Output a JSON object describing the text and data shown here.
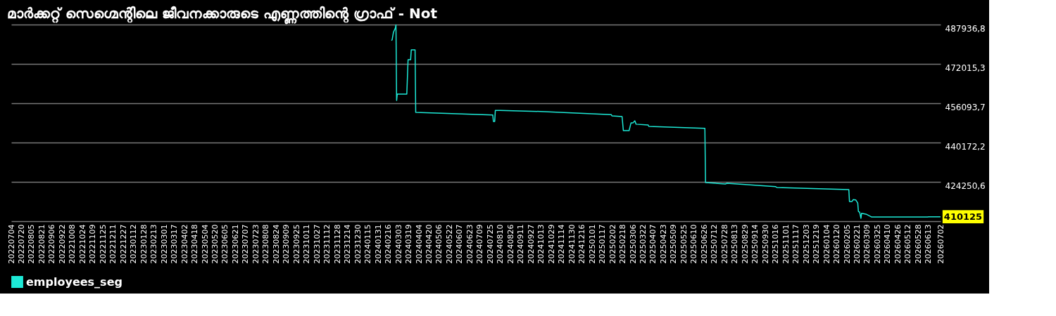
{
  "chart_data": {
    "type": "line",
    "title": "മാർക്കറ്റ് സെഗ്മെന്റിലെ ജീവനക്കാരുടെ എണ്ണത്തിന്റെ ഗ്രാഫ് - Not",
    "series": [
      {
        "name": "employees_seg",
        "color": "#1de9d6",
        "x": [
          "2024-02-21",
          "2024-02-22",
          "2024-02-24",
          "2024-02-27",
          "2024-02-28",
          "2024-02-29",
          "2024-03-01",
          "2024-03-16",
          "2024-03-18",
          "2024-03-22",
          "2024-03-23",
          "2024-03-29",
          "2024-03-30",
          "2024-07-29",
          "2024-07-30",
          "2024-08-01",
          "2024-08-02",
          "2024-08-10",
          "2024-10-18",
          "2025-01-31",
          "2025-02-01",
          "2025-02-17",
          "2025-02-19",
          "2025-02-28",
          "2025-03-03",
          "2025-03-06",
          "2025-03-09",
          "2025-03-11",
          "2025-03-30",
          "2025-03-31",
          "2025-06-27",
          "2025-06-28",
          "2025-07-29",
          "2025-08-01",
          "2025-10-16",
          "2025-10-18",
          "2026-02-08",
          "2026-02-09",
          "2026-02-13",
          "2026-02-15",
          "2026-02-19",
          "2026-02-22",
          "2026-02-23",
          "2026-02-25",
          "2026-02-27",
          "2026-02-28",
          "2026-03-07",
          "2026-03-16",
          "2026-06-12",
          "2026-06-13",
          "2026-07-02"
        ],
        "values": [
          481500,
          481800,
          484800,
          486500,
          487800,
          457200,
          459800,
          459800,
          473700,
          473700,
          477700,
          477700,
          452400,
          451300,
          448700,
          448700,
          453200,
          453200,
          452700,
          451500,
          451000,
          450700,
          445000,
          445000,
          448100,
          448100,
          449000,
          447600,
          447300,
          446700,
          445900,
          424000,
          423400,
          423700,
          422300,
          422000,
          421100,
          416300,
          416300,
          417100,
          416900,
          415700,
          412300,
          412000,
          409500,
          411500,
          411200,
          410000,
          410000,
          410125,
          410125
        ]
      }
    ],
    "ylim": [
      408329.4,
      487936.8
    ],
    "yticks": [
      {
        "value": 408329.4,
        "label": null
      },
      {
        "value": 424250.6,
        "label": "424250,6"
      },
      {
        "value": 440172.2,
        "label": "440172,2"
      },
      {
        "value": 456093.7,
        "label": "456093,7"
      },
      {
        "value": 472015.3,
        "label": "472015,3"
      },
      {
        "value": 487936.8,
        "label": "487936,8"
      }
    ],
    "xlim": [
      "2022-07-04",
      "2026-07-02"
    ],
    "xticks": [
      {
        "value": "2022-07-04",
        "label": "20220704"
      },
      {
        "value": "2022-07-20",
        "label": "20220720"
      },
      {
        "value": "2022-08-05",
        "label": "20220805"
      },
      {
        "value": "2022-08-21",
        "label": "20220821"
      },
      {
        "value": "2022-09-06",
        "label": "20220906"
      },
      {
        "value": "2022-09-22",
        "label": "20220922"
      },
      {
        "value": "2022-10-08",
        "label": "20221008"
      },
      {
        "value": "2022-10-24",
        "label": "20221024"
      },
      {
        "value": "2022-11-09",
        "label": "20221109"
      },
      {
        "value": "2022-11-25",
        "label": "20221125"
      },
      {
        "value": "2022-12-11",
        "label": "20221211"
      },
      {
        "value": "2022-12-27",
        "label": "20221227"
      },
      {
        "value": "2023-01-12",
        "label": "20230112"
      },
      {
        "value": "2023-01-28",
        "label": "20230128"
      },
      {
        "value": "2023-02-13",
        "label": "20230213"
      },
      {
        "value": "2023-03-01",
        "label": "20230301"
      },
      {
        "value": "2023-03-17",
        "label": "20230317"
      },
      {
        "value": "2023-04-02",
        "label": "20230402"
      },
      {
        "value": "2023-04-18",
        "label": "20230418"
      },
      {
        "value": "2023-05-04",
        "label": "20230504"
      },
      {
        "value": "2023-05-20",
        "label": "20230520"
      },
      {
        "value": "2023-06-05",
        "label": "20230605"
      },
      {
        "value": "2023-06-21",
        "label": "20230621"
      },
      {
        "value": "2023-07-07",
        "label": "20230707"
      },
      {
        "value": "2023-07-23",
        "label": "20230723"
      },
      {
        "value": "2023-08-08",
        "label": "20230808"
      },
      {
        "value": "2023-08-24",
        "label": "20230824"
      },
      {
        "value": "2023-09-09",
        "label": "20230909"
      },
      {
        "value": "2023-09-25",
        "label": "20230925"
      },
      {
        "value": "2023-10-11",
        "label": "20231011"
      },
      {
        "value": "2023-10-27",
        "label": "20231027"
      },
      {
        "value": "2023-11-12",
        "label": "20231112"
      },
      {
        "value": "2023-11-28",
        "label": "20231128"
      },
      {
        "value": "2023-12-14",
        "label": "20231214"
      },
      {
        "value": "2023-12-30",
        "label": "20231230"
      },
      {
        "value": "2024-01-15",
        "label": "20240115"
      },
      {
        "value": "2024-01-31",
        "label": "20240131"
      },
      {
        "value": "2024-02-16",
        "label": "20240216"
      },
      {
        "value": "2024-03-03",
        "label": "20240303"
      },
      {
        "value": "2024-03-19",
        "label": "20240319"
      },
      {
        "value": "2024-04-04",
        "label": "20240404"
      },
      {
        "value": "2024-04-20",
        "label": "20240420"
      },
      {
        "value": "2024-05-06",
        "label": "20240506"
      },
      {
        "value": "2024-05-22",
        "label": "20240522"
      },
      {
        "value": "2024-06-07",
        "label": "20240607"
      },
      {
        "value": "2024-06-23",
        "label": "20240623"
      },
      {
        "value": "2024-07-09",
        "label": "20240709"
      },
      {
        "value": "2024-07-25",
        "label": "20240725"
      },
      {
        "value": "2024-08-10",
        "label": "20240810"
      },
      {
        "value": "2024-08-26",
        "label": "20240826"
      },
      {
        "value": "2024-09-11",
        "label": "20240911"
      },
      {
        "value": "2024-09-27",
        "label": "20240927"
      },
      {
        "value": "2024-10-13",
        "label": "20241013"
      },
      {
        "value": "2024-10-29",
        "label": "20241029"
      },
      {
        "value": "2024-11-14",
        "label": "20241114"
      },
      {
        "value": "2024-11-30",
        "label": "20241130"
      },
      {
        "value": "2024-12-16",
        "label": "20241216"
      },
      {
        "value": "2025-01-01",
        "label": "20250101"
      },
      {
        "value": "2025-01-17",
        "label": "20250117"
      },
      {
        "value": "2025-02-02",
        "label": "20250202"
      },
      {
        "value": "2025-02-18",
        "label": "20250218"
      },
      {
        "value": "2025-03-06",
        "label": "20250306"
      },
      {
        "value": "2025-03-22",
        "label": "20250322"
      },
      {
        "value": "2025-04-07",
        "label": "20250407"
      },
      {
        "value": "2025-04-23",
        "label": "20250423"
      },
      {
        "value": "2025-05-09",
        "label": "20250509"
      },
      {
        "value": "2025-05-25",
        "label": "20250525"
      },
      {
        "value": "2025-06-10",
        "label": "20250610"
      },
      {
        "value": "2025-06-26",
        "label": "20250626"
      },
      {
        "value": "2025-07-12",
        "label": "20250712"
      },
      {
        "value": "2025-07-28",
        "label": "20250728"
      },
      {
        "value": "2025-08-13",
        "label": "20250813"
      },
      {
        "value": "2025-08-29",
        "label": "20250829"
      },
      {
        "value": "2025-09-14",
        "label": "20250914"
      },
      {
        "value": "2025-09-30",
        "label": "20250930"
      },
      {
        "value": "2025-10-16",
        "label": "20251016"
      },
      {
        "value": "2025-11-01",
        "label": "20251101"
      },
      {
        "value": "2025-11-17",
        "label": "20251117"
      },
      {
        "value": "2025-12-03",
        "label": "20251203"
      },
      {
        "value": "2025-12-19",
        "label": "20251219"
      },
      {
        "value": "2026-01-04",
        "label": "20260104"
      },
      {
        "value": "2026-01-20",
        "label": "20260120"
      },
      {
        "value": "2026-02-05",
        "label": "20260205"
      },
      {
        "value": "2026-02-21",
        "label": "20260221"
      },
      {
        "value": "2026-03-09",
        "label": "20260309"
      },
      {
        "value": "2026-03-25",
        "label": "20260325"
      },
      {
        "value": "2026-04-10",
        "label": "20260410"
      },
      {
        "value": "2026-04-26",
        "label": "20260426"
      },
      {
        "value": "2026-05-12",
        "label": "20260512"
      },
      {
        "value": "2026-05-28",
        "label": "20260528"
      },
      {
        "value": "2026-06-13",
        "label": "20260613"
      },
      {
        "value": "2026-07-02",
        "label": "20260702"
      }
    ],
    "annotations": [
      {
        "text": "410125",
        "x": "2026-07-02",
        "y": 410125
      }
    ],
    "grid": "y",
    "legend": "bottom"
  }
}
